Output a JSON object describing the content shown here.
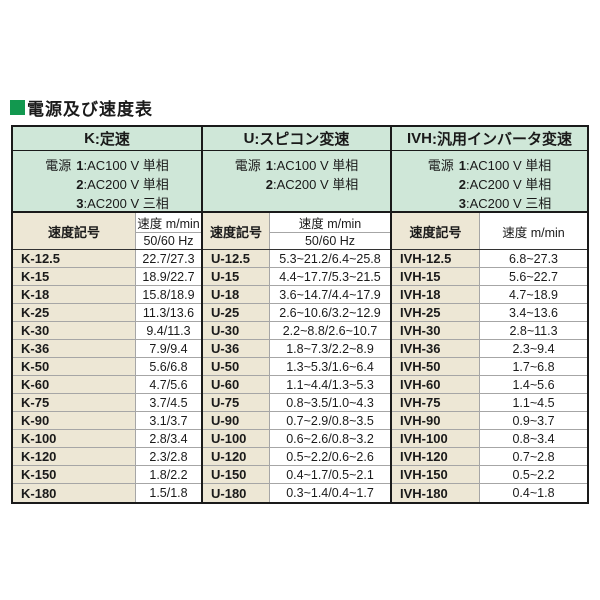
{
  "title": {
    "bullet_icon": "green-square",
    "text": "電源及び速度表"
  },
  "colors": {
    "accent_green": "#12984f",
    "band_green": "#cfe7d8",
    "label_beige": "#ede7d5",
    "border_dark": "#1a1a1a",
    "border_gray": "#a6a6a6"
  },
  "table": {
    "sections": [
      {
        "id": "K",
        "header": {
          "prefix": "K",
          "rest": ":定速"
        },
        "power": {
          "label": "電源",
          "lines": [
            {
              "num": "1",
              "rest": ":AC100 V 単相"
            },
            {
              "num": "2",
              "rest": ":AC200 V 単相"
            },
            {
              "num": "3",
              "rest": ":AC200 V 三相"
            }
          ]
        },
        "columns": {
          "symbol": "速度記号",
          "speed": "速度 m/min",
          "freq": "50/60 Hz"
        },
        "rows": [
          {
            "symbol": "K-12.5",
            "speed": "22.7/27.3"
          },
          {
            "symbol": "K-15",
            "speed": "18.9/22.7"
          },
          {
            "symbol": "K-18",
            "speed": "15.8/18.9"
          },
          {
            "symbol": "K-25",
            "speed": "11.3/13.6"
          },
          {
            "symbol": "K-30",
            "speed": "9.4/11.3"
          },
          {
            "symbol": "K-36",
            "speed": "7.9/9.4"
          },
          {
            "symbol": "K-50",
            "speed": "5.6/6.8"
          },
          {
            "symbol": "K-60",
            "speed": "4.7/5.6"
          },
          {
            "symbol": "K-75",
            "speed": "3.7/4.5"
          },
          {
            "symbol": "K-90",
            "speed": "3.1/3.7"
          },
          {
            "symbol": "K-100",
            "speed": "2.8/3.4"
          },
          {
            "symbol": "K-120",
            "speed": "2.3/2.8"
          },
          {
            "symbol": "K-150",
            "speed": "1.8/2.2"
          },
          {
            "symbol": "K-180",
            "speed": "1.5/1.8"
          }
        ]
      },
      {
        "id": "U",
        "header": {
          "prefix": "U",
          "rest": ":スピコン変速"
        },
        "power": {
          "label": "電源",
          "lines": [
            {
              "num": "1",
              "rest": ":AC100 V 単相"
            },
            {
              "num": "2",
              "rest": ":AC200 V 単相"
            }
          ]
        },
        "columns": {
          "symbol": "速度記号",
          "speed": "速度 m/min",
          "freq": "50/60 Hz"
        },
        "rows": [
          {
            "symbol": "U-12.5",
            "speed": "5.3~21.2/6.4~25.8"
          },
          {
            "symbol": "U-15",
            "speed": "4.4~17.7/5.3~21.5"
          },
          {
            "symbol": "U-18",
            "speed": "3.6~14.7/4.4~17.9"
          },
          {
            "symbol": "U-25",
            "speed": "2.6~10.6/3.2~12.9"
          },
          {
            "symbol": "U-30",
            "speed": "2.2~8.8/2.6~10.7"
          },
          {
            "symbol": "U-36",
            "speed": "1.8~7.3/2.2~8.9"
          },
          {
            "symbol": "U-50",
            "speed": "1.3~5.3/1.6~6.4"
          },
          {
            "symbol": "U-60",
            "speed": "1.1~4.4/1.3~5.3"
          },
          {
            "symbol": "U-75",
            "speed": "0.8~3.5/1.0~4.3"
          },
          {
            "symbol": "U-90",
            "speed": "0.7~2.9/0.8~3.5"
          },
          {
            "symbol": "U-100",
            "speed": "0.6~2.6/0.8~3.2"
          },
          {
            "symbol": "U-120",
            "speed": "0.5~2.2/0.6~2.6"
          },
          {
            "symbol": "U-150",
            "speed": "0.4~1.7/0.5~2.1"
          },
          {
            "symbol": "U-180",
            "speed": "0.3~1.4/0.4~1.7"
          }
        ]
      },
      {
        "id": "IVH",
        "header": {
          "prefix": "IVH",
          "rest": ":汎用インバータ変速"
        },
        "power": {
          "label": "電源",
          "lines": [
            {
              "num": "1",
              "rest": ":AC100 V 単相"
            },
            {
              "num": "2",
              "rest": ":AC200 V 単相"
            },
            {
              "num": "3",
              "rest": ":AC200 V 三相"
            }
          ]
        },
        "columns": {
          "symbol": "速度記号",
          "speed": "速度 m/min",
          "freq": null
        },
        "rows": [
          {
            "symbol": "IVH-12.5",
            "speed": "6.8~27.3"
          },
          {
            "symbol": "IVH-15",
            "speed": "5.6~22.7"
          },
          {
            "symbol": "IVH-18",
            "speed": "4.7~18.9"
          },
          {
            "symbol": "IVH-25",
            "speed": "3.4~13.6"
          },
          {
            "symbol": "IVH-30",
            "speed": "2.8~11.3"
          },
          {
            "symbol": "IVH-36",
            "speed": "2.3~9.4"
          },
          {
            "symbol": "IVH-50",
            "speed": "1.7~6.8"
          },
          {
            "symbol": "IVH-60",
            "speed": "1.4~5.6"
          },
          {
            "symbol": "IVH-75",
            "speed": "1.1~4.5"
          },
          {
            "symbol": "IVH-90",
            "speed": "0.9~3.7"
          },
          {
            "symbol": "IVH-100",
            "speed": "0.8~3.4"
          },
          {
            "symbol": "IVH-120",
            "speed": "0.7~2.8"
          },
          {
            "symbol": "IVH-150",
            "speed": "0.5~2.2"
          },
          {
            "symbol": "IVH-180",
            "speed": "0.4~1.8"
          }
        ]
      }
    ]
  }
}
